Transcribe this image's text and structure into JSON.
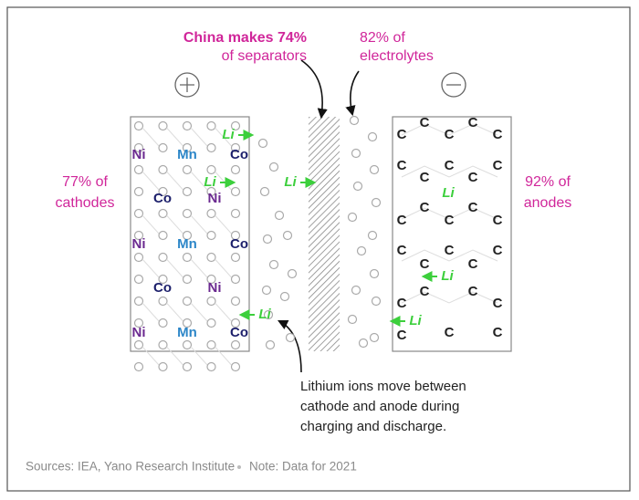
{
  "callouts": {
    "separators": {
      "line1": "China makes 74%",
      "line2": "of separators"
    },
    "electrolytes": {
      "line1": "82% of",
      "line2": "electrolytes"
    },
    "cathodes": {
      "line1": "77% of",
      "line2": "cathodes"
    },
    "anodes": {
      "line1": "92% of",
      "line2": "anodes"
    }
  },
  "note": {
    "lines": [
      "Lithium ions move between",
      "cathode and anode during",
      "charging and discharge."
    ]
  },
  "footer": {
    "sources": "Sources: IEA, Yano Research Institute",
    "note": "Note: Data for 2021"
  },
  "cathode_atoms": [
    "Ni",
    "Mn",
    "Co",
    "Co",
    "Ni",
    "Ni",
    "Mn",
    "Co",
    "Co",
    "Ni",
    "Ni",
    "Mn",
    "Co"
  ],
  "lithium_labels": [
    "Li",
    "Li",
    "Li",
    "Li",
    "Li",
    "Li",
    "Li"
  ],
  "anode_atoms": [
    "C",
    "C",
    "C",
    "C",
    "C",
    "C",
    "C",
    "C",
    "C",
    "C",
    "C",
    "C",
    "C",
    "C",
    "C",
    "C",
    "C",
    "C",
    "C",
    "C",
    "C",
    "C",
    "C",
    "C",
    "C",
    "C",
    "C"
  ]
}
